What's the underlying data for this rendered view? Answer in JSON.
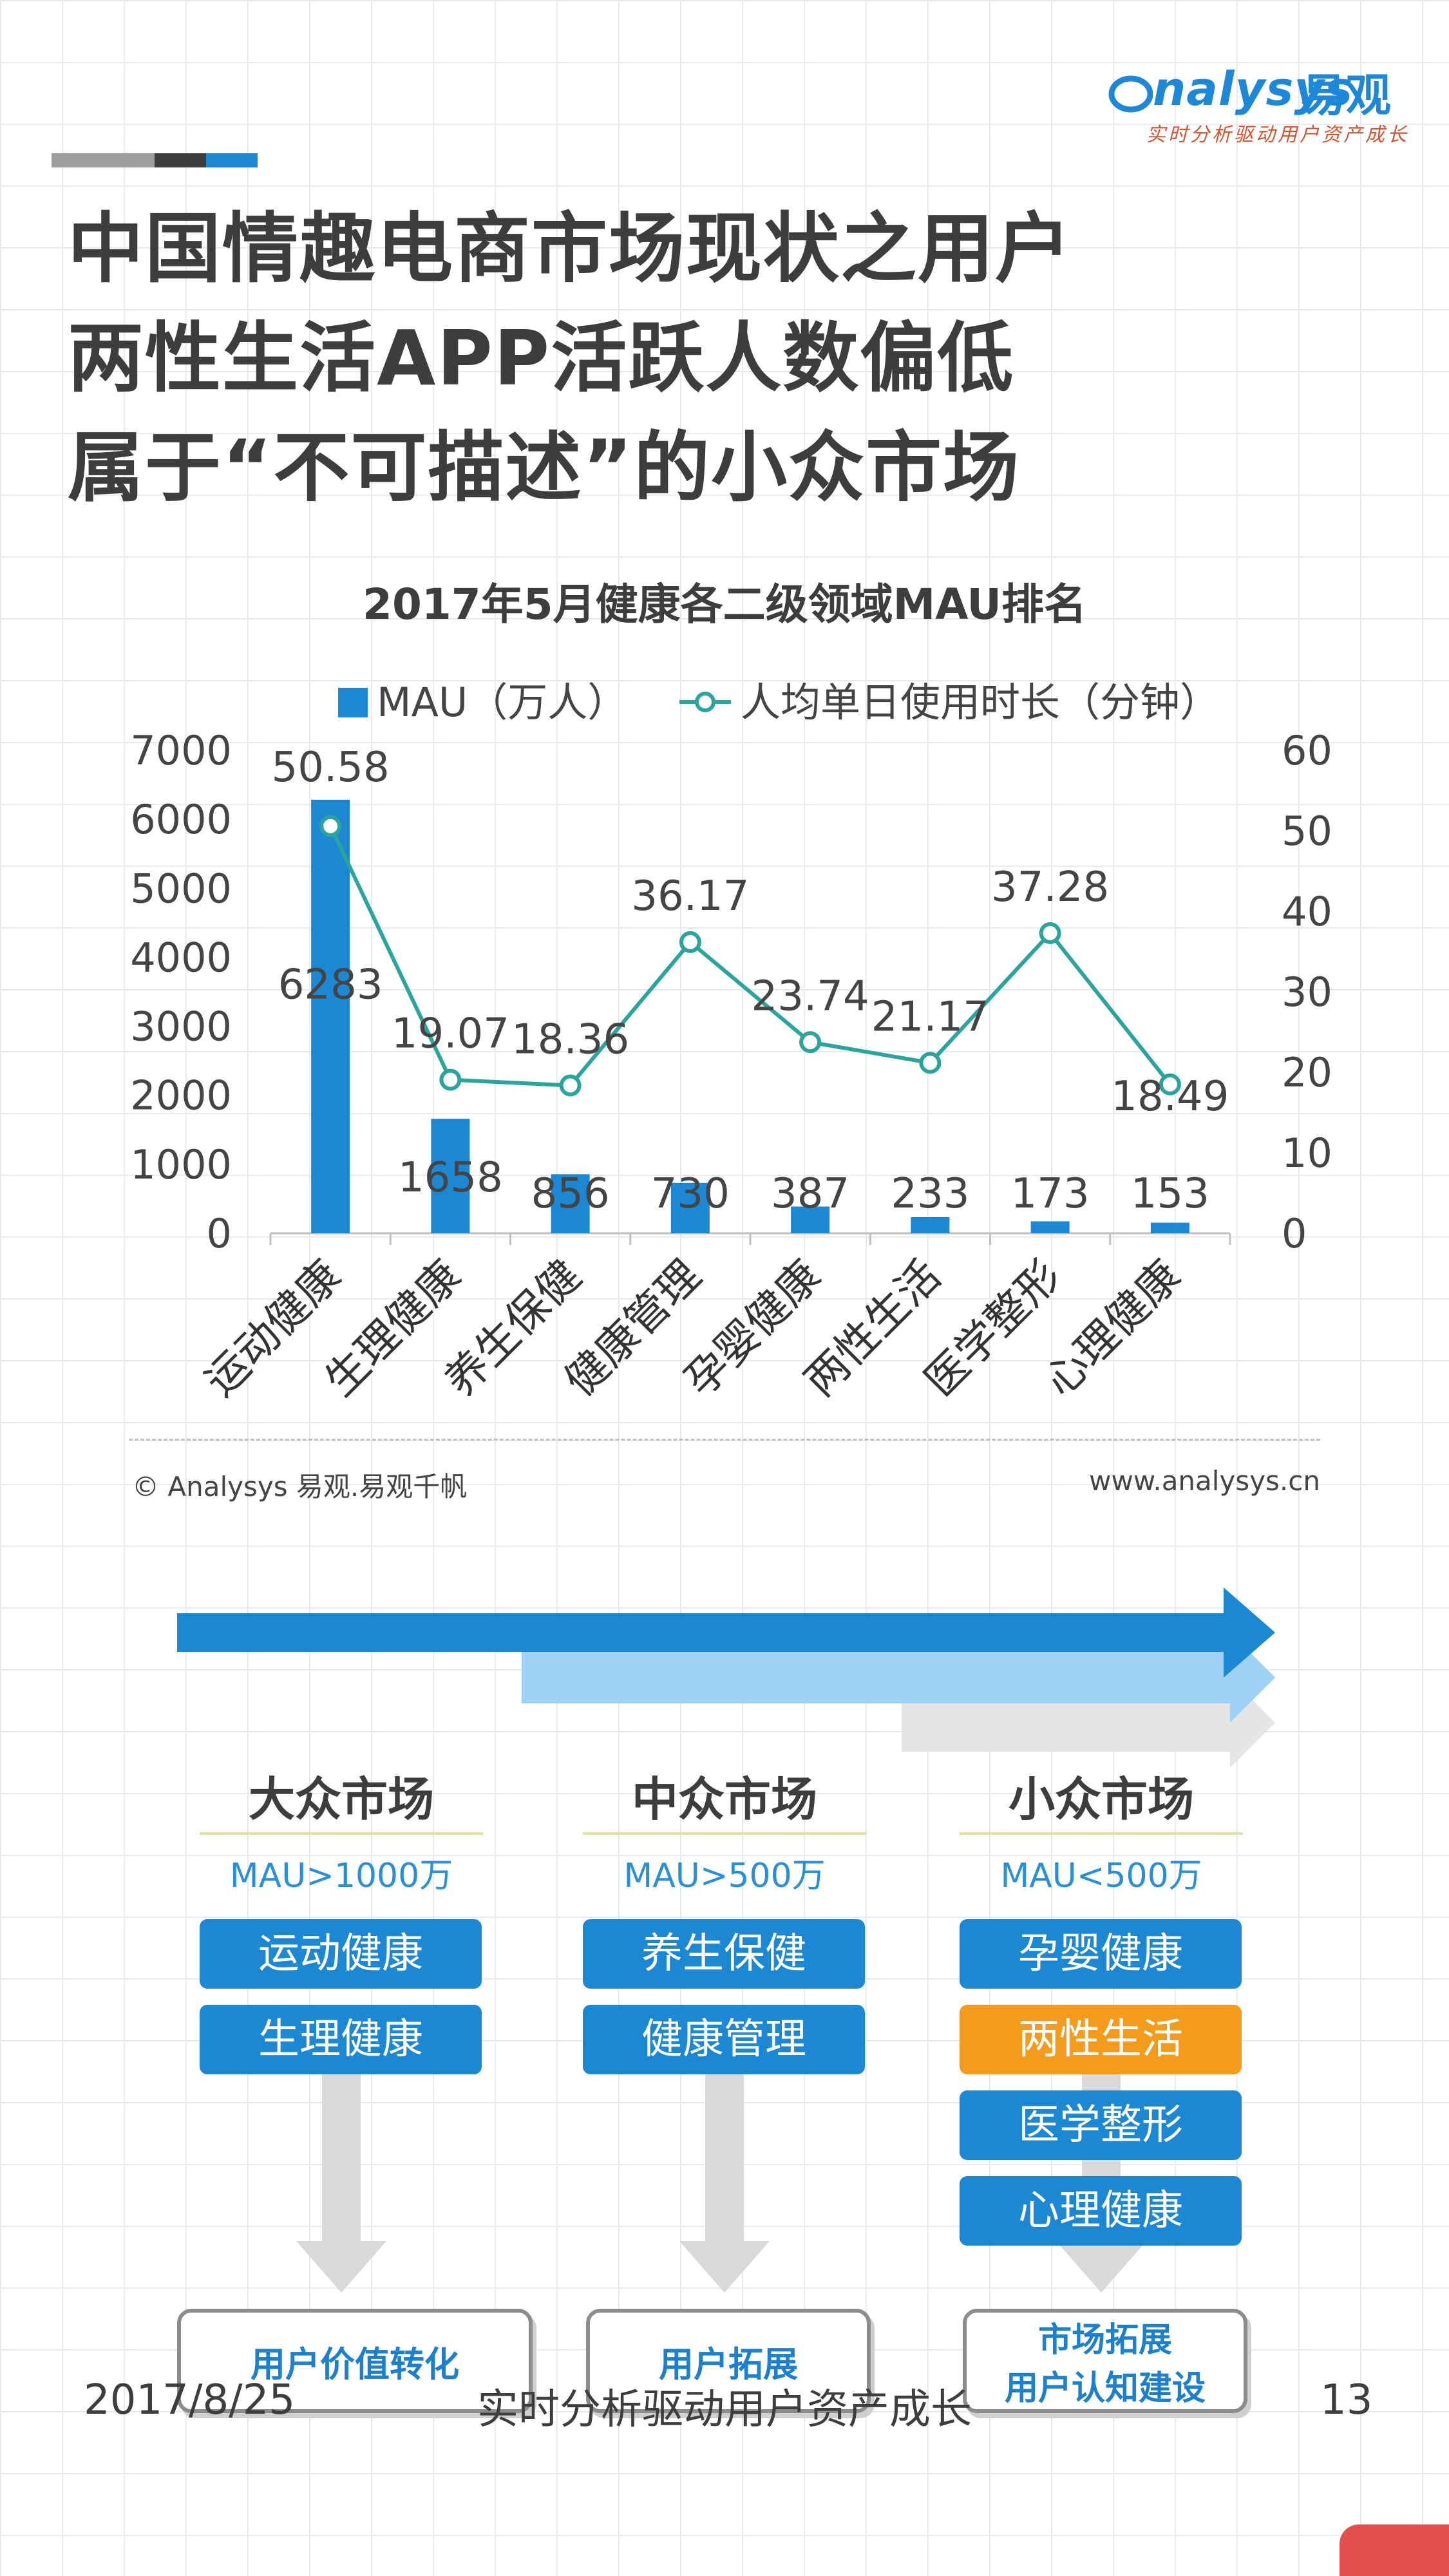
{
  "logo": {
    "word": "nalysys",
    "cn": "易观",
    "tagline": "实时分析驱动用户资产成长"
  },
  "title_lines": [
    "中国情趣电商市场现状之用户",
    "两性生活APP活跃人数偏低",
    "属于“不可描述”的小众市场"
  ],
  "chart_data": {
    "type": "bar+line",
    "title": "2017年5月健康各二级领域MAU排名",
    "categories": [
      "运动健康",
      "生理健康",
      "养生保健",
      "健康管理",
      "孕婴健康",
      "两性生活",
      "医学整形",
      "心理健康"
    ],
    "series": [
      {
        "name": "MAU（万人）",
        "type": "bar",
        "axis": "left",
        "values": [
          6283,
          1658,
          856,
          730,
          387,
          233,
          173,
          153
        ]
      },
      {
        "name": "人均单日使用时长（分钟）",
        "type": "line",
        "axis": "right",
        "values": [
          50.58,
          19.07,
          18.36,
          36.17,
          23.74,
          21.17,
          37.28,
          18.49
        ]
      }
    ],
    "y_left": {
      "min": 0,
      "max": 7000,
      "ticks": [
        0,
        1000,
        2000,
        3000,
        4000,
        5000,
        6000,
        7000
      ]
    },
    "y_right": {
      "min": 0,
      "max": 60,
      "ticks": [
        0,
        10,
        20,
        30,
        40,
        50,
        60
      ]
    },
    "legend_position": "top-center",
    "grid": false,
    "colors": {
      "bar": "#1c88d4",
      "line": "#2aa59b"
    }
  },
  "source": {
    "copyright": "© Analysys 易观.易观千帆",
    "website": "www.analysys.cn"
  },
  "markets": [
    {
      "title": "大众市场",
      "mau": "MAU>1000万",
      "items": [
        "运动健康",
        "生理健康"
      ],
      "outcome": [
        "用户价值转化"
      ]
    },
    {
      "title": "中众市场",
      "mau": "MAU>500万",
      "items": [
        "养生保健",
        "健康管理"
      ],
      "outcome": [
        "用户拓展"
      ]
    },
    {
      "title": "小众市场",
      "mau": "MAU<500万",
      "items": [
        "孕婴健康",
        "两性生活",
        "医学整形",
        "心理健康"
      ],
      "outcome": [
        "市场拓展",
        "用户认知建设"
      ]
    }
  ],
  "highlight_item": "两性生活",
  "footer": {
    "date": "2017/8/25",
    "slogan": "实时分析驱动用户资产成长",
    "page": "13"
  }
}
